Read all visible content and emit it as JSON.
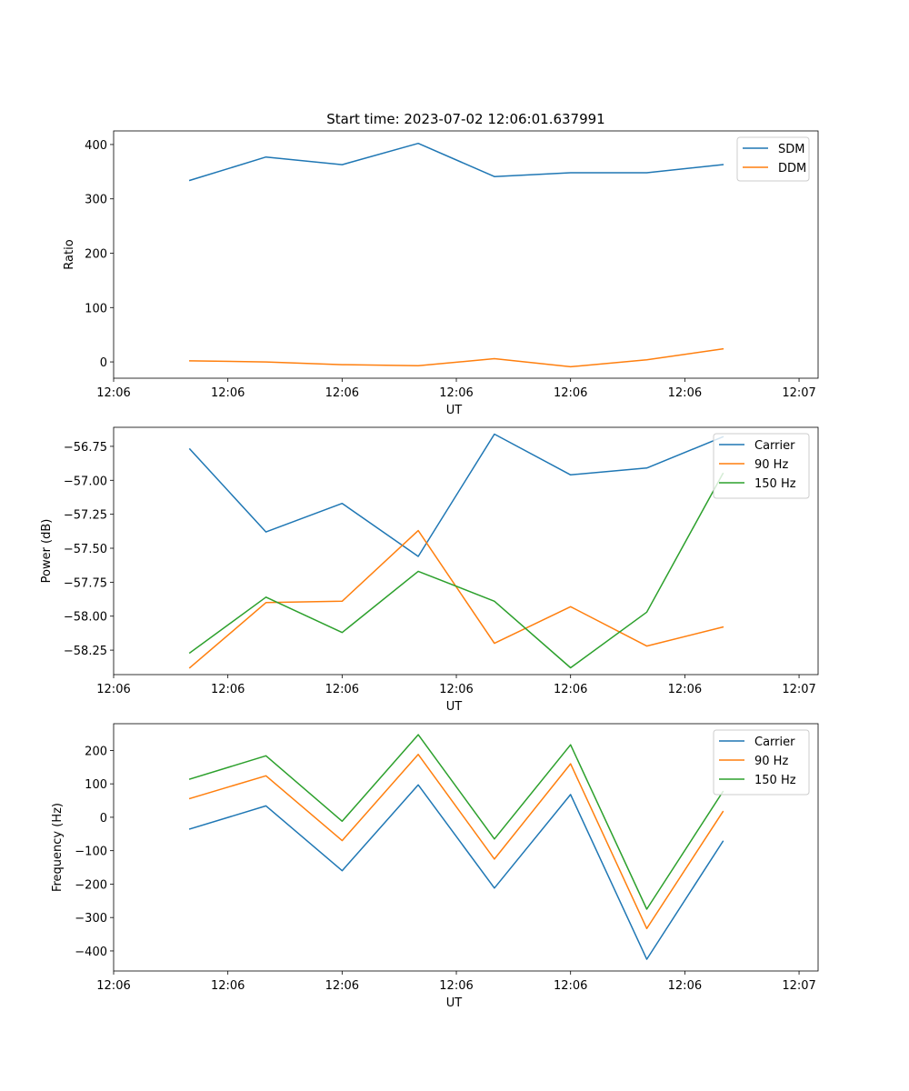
{
  "title": "Start time: 2023-07-02 12:06:01.637991",
  "colors": {
    "series1": "#1f77b4",
    "series2": "#ff7f0e",
    "series3": "#2ca02c"
  },
  "chart_data": [
    {
      "type": "line",
      "xlabel": "UT",
      "ylabel": "Ratio",
      "xlim": [
        0,
        9.25
      ],
      "x": [
        1,
        2,
        3,
        4,
        5,
        6,
        7,
        8
      ],
      "xticks": [
        0,
        1.5,
        3,
        4.5,
        6,
        7.5,
        9
      ],
      "xtick_labels": [
        "12:06",
        "12:06",
        "12:06",
        "12:06",
        "12:06",
        "12:06",
        "12:07"
      ],
      "ylim": [
        -30,
        425
      ],
      "yticks": [
        0,
        100,
        200,
        300,
        400
      ],
      "ytick_labels": [
        "0",
        "100",
        "200",
        "300",
        "400"
      ],
      "legend": "top-right",
      "series": [
        {
          "name": "SDM",
          "color": "#1f77b4",
          "values": [
            334,
            377,
            363,
            402,
            341,
            348,
            348,
            363
          ]
        },
        {
          "name": "DDM",
          "color": "#ff7f0e",
          "values": [
            2,
            0,
            -5,
            -7,
            6,
            -9,
            4,
            24
          ]
        }
      ]
    },
    {
      "type": "line",
      "xlabel": "UT",
      "ylabel": "Power (dB)",
      "xlim": [
        0,
        9.25
      ],
      "x": [
        1,
        2,
        3,
        4,
        5,
        6,
        7,
        8
      ],
      "xticks": [
        0,
        1.5,
        3,
        4.5,
        6,
        7.5,
        9
      ],
      "xtick_labels": [
        "12:06",
        "12:06",
        "12:06",
        "12:06",
        "12:06",
        "12:06",
        "12:07"
      ],
      "ylim": [
        -58.43,
        -56.61
      ],
      "yticks": [
        -56.75,
        -57.0,
        -57.25,
        -57.5,
        -57.75,
        -58.0,
        -58.25
      ],
      "ytick_labels": [
        "−56.75",
        "−57.00",
        "−57.25",
        "−57.50",
        "−57.75",
        "−58.00",
        "−58.25"
      ],
      "legend": "top-right",
      "series": [
        {
          "name": "Carrier",
          "color": "#1f77b4",
          "values": [
            -56.77,
            -57.38,
            -57.17,
            -57.56,
            -56.66,
            -56.96,
            -56.91,
            -56.68
          ]
        },
        {
          "name": "90 Hz",
          "color": "#ff7f0e",
          "values": [
            -58.38,
            -57.9,
            -57.89,
            -57.37,
            -58.2,
            -57.93,
            -58.22,
            -58.08
          ]
        },
        {
          "name": "150 Hz",
          "color": "#2ca02c",
          "values": [
            -58.27,
            -57.86,
            -58.12,
            -57.67,
            -57.89,
            -58.38,
            -57.97,
            -56.95
          ]
        }
      ]
    },
    {
      "type": "line",
      "xlabel": "UT",
      "ylabel": "Frequency (Hz)",
      "xlim": [
        0,
        9.25
      ],
      "x": [
        1,
        2,
        3,
        4,
        5,
        6,
        7,
        8
      ],
      "xticks": [
        0,
        1.5,
        3,
        4.5,
        6,
        7.5,
        9
      ],
      "xtick_labels": [
        "12:06",
        "12:06",
        "12:06",
        "12:06",
        "12:06",
        "12:06",
        "12:07"
      ],
      "ylim": [
        -460,
        280
      ],
      "yticks": [
        200,
        100,
        0,
        -100,
        -200,
        -300,
        -400
      ],
      "ytick_labels": [
        "200",
        "100",
        "0",
        "−100",
        "−200",
        "−300",
        "−400"
      ],
      "legend": "top-right",
      "series": [
        {
          "name": "Carrier",
          "color": "#1f77b4",
          "values": [
            -35,
            34,
            -160,
            97,
            -212,
            68,
            -425,
            -72
          ]
        },
        {
          "name": "90 Hz",
          "color": "#ff7f0e",
          "values": [
            56,
            124,
            -70,
            188,
            -125,
            160,
            -333,
            17
          ]
        },
        {
          "name": "150 Hz",
          "color": "#2ca02c",
          "values": [
            114,
            184,
            -12,
            247,
            -65,
            217,
            -275,
            77
          ]
        }
      ]
    }
  ]
}
